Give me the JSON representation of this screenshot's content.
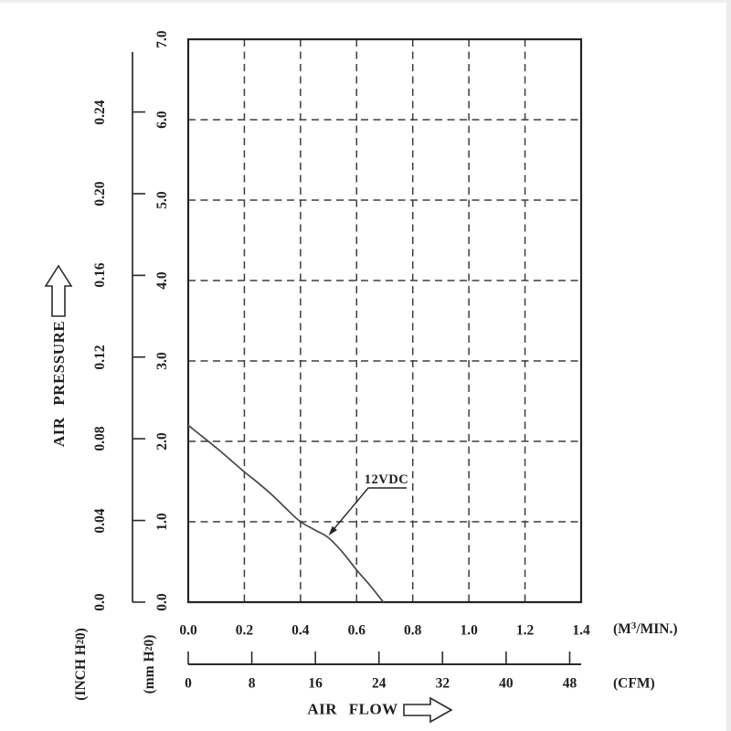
{
  "colors": {
    "background": "#ffffff",
    "ink": "#1f1f1f",
    "frame": "#242424",
    "grid": "#3d3d3d",
    "curve": "#474747",
    "ruler": "#2a2a2a"
  },
  "y_axis": {
    "title": "AIR PRESSURE",
    "inch": {
      "unit_pre": "(INCH H",
      "unit_sub": "2",
      "unit_post": "0)",
      "ticks": [
        "0.24",
        "0.20",
        "0.16",
        "0.12",
        "0.08",
        "0.04",
        "0.0"
      ]
    },
    "mm": {
      "unit_pre": "(mm H",
      "unit_sub": "2",
      "unit_post": "0)",
      "ticks": [
        "7.0",
        "6.0",
        "5.0",
        "4.0",
        "3.0",
        "2.0",
        "1.0",
        "0.0"
      ]
    }
  },
  "x_axis": {
    "title": "AIR FLOW",
    "m3min": {
      "unit_pre": "(M",
      "unit_sup": "3",
      "unit_post": "/MIN.)",
      "ticks": [
        "0.0",
        "0.2",
        "0.4",
        "0.6",
        "0.8",
        "1.0",
        "1.2",
        "1.4"
      ]
    },
    "cfm": {
      "unit": "(CFM)",
      "ticks": [
        "0",
        "8",
        "16",
        "24",
        "32",
        "40",
        "48"
      ]
    }
  },
  "annotation": {
    "label": "12VDC"
  },
  "chart_data": {
    "type": "line",
    "title": "",
    "xlabel": "AIR FLOW",
    "ylabel": "AIR PRESSURE",
    "x_units": [
      "(M3/MIN.)",
      "(CFM)"
    ],
    "y_units": [
      "(INCH H2O)",
      "(mm H2O)"
    ],
    "x_range_m3min": [
      0,
      1.4
    ],
    "x_range_cfm": [
      0,
      48
    ],
    "y_range_mmH2O": [
      0,
      7
    ],
    "y_range_inchH2O": [
      0,
      0.28
    ],
    "x_ticks_m3min": [
      0.0,
      0.2,
      0.4,
      0.6,
      0.8,
      1.0,
      1.2,
      1.4
    ],
    "x_ticks_cfm": [
      0,
      8,
      16,
      24,
      32,
      40,
      48
    ],
    "y_ticks_mmH2O": [
      7.0,
      6.0,
      5.0,
      4.0,
      3.0,
      2.0,
      1.0,
      0.0
    ],
    "y_ticks_inchH2O": [
      0.24,
      0.2,
      0.16,
      0.12,
      0.08,
      0.04,
      0.0
    ],
    "grid": "dashed",
    "legend_position": "inline-annotation",
    "series": [
      {
        "name": "12VDC",
        "x_m3min": [
          0.0,
          0.05,
          0.1,
          0.15,
          0.2,
          0.25,
          0.3,
          0.35,
          0.4,
          0.45,
          0.5,
          0.55,
          0.6,
          0.65,
          0.695
        ],
        "y_mmH2O": [
          2.2,
          2.06,
          1.92,
          1.77,
          1.62,
          1.48,
          1.33,
          1.16,
          1.0,
          0.9,
          0.8,
          0.62,
          0.4,
          0.2,
          0.0
        ]
      }
    ],
    "annotation": {
      "label": "12VDC",
      "x_m3min": 0.5,
      "y_mmH2O": 0.83
    }
  }
}
